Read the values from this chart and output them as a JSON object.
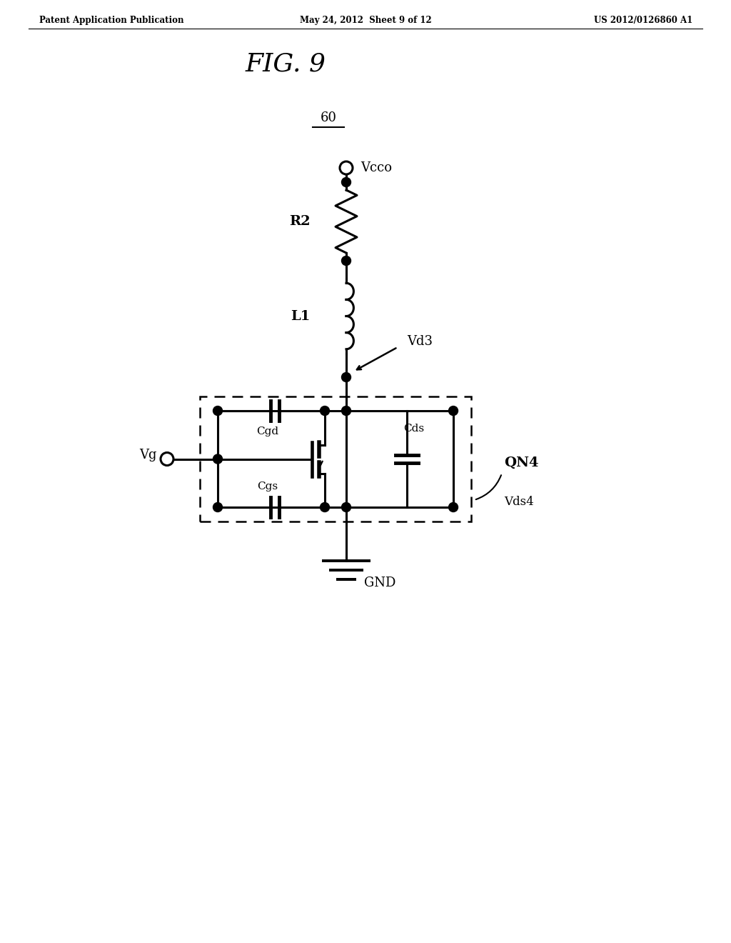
{
  "title": "FIG. 9",
  "header_left": "Patent Application Publication",
  "header_center": "May 24, 2012  Sheet 9 of 12",
  "header_right": "US 2012/0126860 A1",
  "circuit_label": "60",
  "vcco_label": "Vcco",
  "r2_label": "R2",
  "l1_label": "L1",
  "vd3_label": "Vd3",
  "vg_label": "Vg",
  "cgd_label": "Cgd",
  "cgs_label": "Cgs",
  "cds_label": "Cds",
  "qn4_label": "QN4",
  "vds4_label": "Vds4",
  "gnd_label": "GND",
  "bg_color": "#ffffff",
  "line_color": "#000000",
  "lw": 2.2
}
